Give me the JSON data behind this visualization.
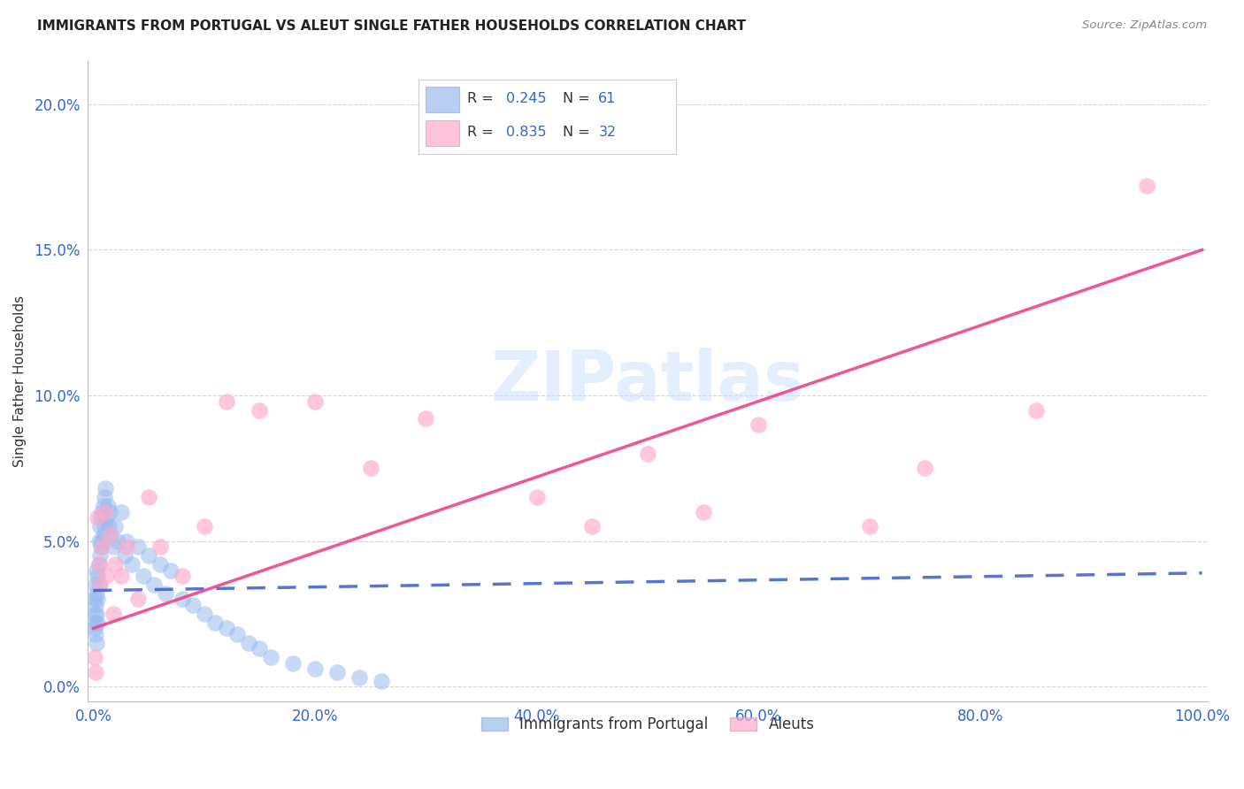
{
  "title": "IMMIGRANTS FROM PORTUGAL VS ALEUT SINGLE FATHER HOUSEHOLDS CORRELATION CHART",
  "source": "Source: ZipAtlas.com",
  "xlabel_blue": "Immigrants from Portugal",
  "xlabel_pink": "Aleuts",
  "ylabel": "Single Father Households",
  "watermark": "ZIPatlas",
  "blue_R": "0.245",
  "blue_N": "61",
  "pink_R": "0.835",
  "pink_N": "32",
  "blue_color": "#99bbee",
  "pink_color": "#ffaacc",
  "blue_line_color": "#4466cc",
  "pink_line_color": "#ee4488",
  "blue_points_x": [
    0.001,
    0.001,
    0.001,
    0.002,
    0.002,
    0.002,
    0.002,
    0.003,
    0.003,
    0.003,
    0.003,
    0.004,
    0.004,
    0.004,
    0.005,
    0.005,
    0.005,
    0.006,
    0.006,
    0.007,
    0.007,
    0.008,
    0.008,
    0.009,
    0.009,
    0.01,
    0.01,
    0.011,
    0.012,
    0.013,
    0.014,
    0.015,
    0.016,
    0.018,
    0.02,
    0.022,
    0.025,
    0.028,
    0.03,
    0.035,
    0.04,
    0.045,
    0.05,
    0.055,
    0.06,
    0.065,
    0.07,
    0.08,
    0.09,
    0.1,
    0.11,
    0.12,
    0.13,
    0.14,
    0.15,
    0.16,
    0.18,
    0.2,
    0.22,
    0.24,
    0.26
  ],
  "blue_points_y": [
    0.03,
    0.025,
    0.02,
    0.035,
    0.028,
    0.022,
    0.018,
    0.04,
    0.032,
    0.025,
    0.015,
    0.038,
    0.03,
    0.022,
    0.05,
    0.042,
    0.035,
    0.055,
    0.045,
    0.058,
    0.048,
    0.06,
    0.05,
    0.062,
    0.052,
    0.065,
    0.055,
    0.068,
    0.058,
    0.062,
    0.055,
    0.06,
    0.052,
    0.048,
    0.055,
    0.05,
    0.06,
    0.045,
    0.05,
    0.042,
    0.048,
    0.038,
    0.045,
    0.035,
    0.042,
    0.032,
    0.04,
    0.03,
    0.028,
    0.025,
    0.022,
    0.02,
    0.018,
    0.015,
    0.013,
    0.01,
    0.008,
    0.006,
    0.005,
    0.003,
    0.002
  ],
  "pink_points_x": [
    0.001,
    0.002,
    0.004,
    0.005,
    0.006,
    0.008,
    0.01,
    0.012,
    0.015,
    0.018,
    0.02,
    0.025,
    0.03,
    0.04,
    0.05,
    0.06,
    0.08,
    0.1,
    0.12,
    0.15,
    0.2,
    0.25,
    0.3,
    0.4,
    0.45,
    0.5,
    0.55,
    0.6,
    0.7,
    0.75,
    0.85,
    0.95
  ],
  "pink_points_y": [
    0.01,
    0.005,
    0.058,
    0.042,
    0.035,
    0.048,
    0.06,
    0.038,
    0.052,
    0.025,
    0.042,
    0.038,
    0.048,
    0.03,
    0.065,
    0.048,
    0.038,
    0.055,
    0.098,
    0.095,
    0.098,
    0.075,
    0.092,
    0.065,
    0.055,
    0.08,
    0.06,
    0.09,
    0.055,
    0.075,
    0.095,
    0.172
  ],
  "blue_line_slope": 0.006,
  "blue_line_intercept": 0.033,
  "pink_line_slope": 0.13,
  "pink_line_intercept": 0.02,
  "xticks": [
    0.0,
    0.2,
    0.4,
    0.6,
    0.8,
    1.0
  ],
  "yticks": [
    0.0,
    0.05,
    0.1,
    0.15,
    0.2
  ],
  "xtick_labels": [
    "0.0%",
    "20.0%",
    "40.0%",
    "60.0%",
    "80.0%",
    "100.0%"
  ],
  "ytick_labels": [
    "0.0%",
    "5.0%",
    "10.0%",
    "15.0%",
    "20.0%"
  ]
}
